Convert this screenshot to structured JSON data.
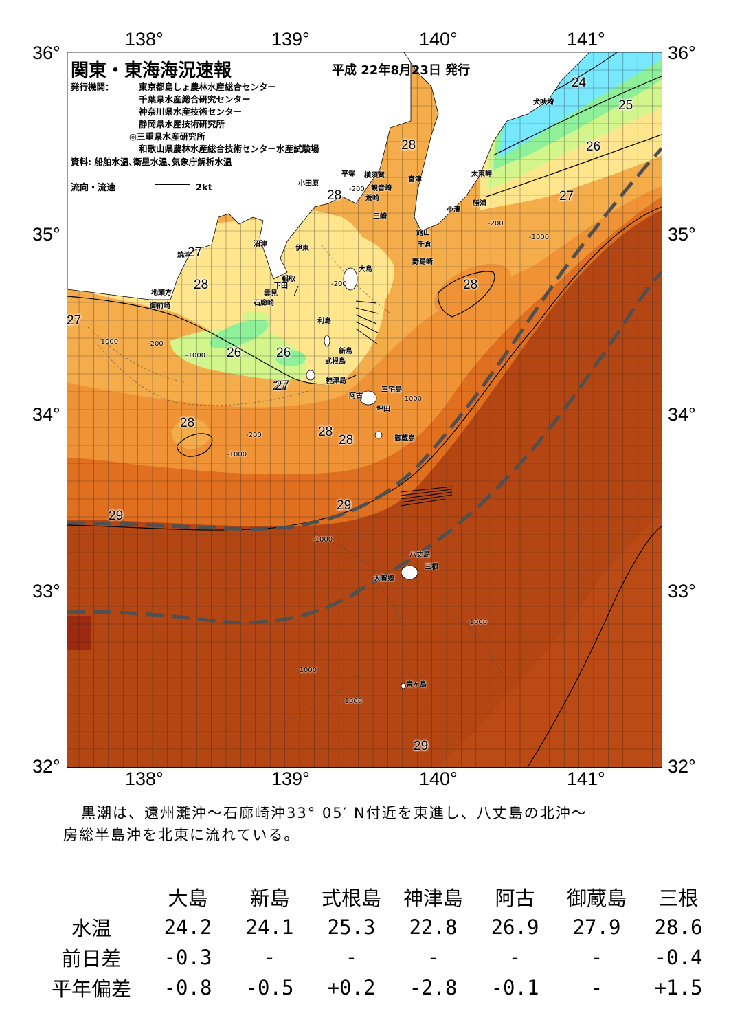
{
  "header": {
    "title": "関東・東海海況速報",
    "issue_date": "平成 22年8月23日 発行"
  },
  "publishers": {
    "label": "発行機関：",
    "orgs": [
      "東京都島しょ農林水産総合センター",
      "千葉県水産総合研究センター",
      "神奈川県水産技術センター",
      "静岡県水産技術研究所",
      "◎三重県水産研究所",
      "和歌山県農林水産総合技術センター水産試験場"
    ],
    "sources": "資料: 船舶水温､衛星水温､気象庁解析水温"
  },
  "legend": {
    "current_label": "流向・流速",
    "scale_label": "2kt"
  },
  "axes": {
    "lon_top": [
      "138°",
      "139°",
      "140°",
      "141°"
    ],
    "lon_bottom": [
      "138°",
      "139°",
      "140°",
      "141°"
    ],
    "lat_left": [
      "36°",
      "35°",
      "34°",
      "33°",
      "32°"
    ],
    "lat_right": [
      "36°",
      "35°",
      "34°",
      "33°",
      "32°"
    ]
  },
  "places": {
    "inubozaki": "犬吠埼",
    "taitomisaki": "太東岬",
    "katsuura": "勝浦",
    "kominato": "小湊",
    "tomitsu": "富津",
    "yokosuka": "横須賀",
    "kannonzaki": "観音崎",
    "hiratsuka": "平塚",
    "odawara": "小田原",
    "arasaki": "荒崎",
    "misaki": "三崎",
    "tateyama": "館山",
    "chikura": "千倉",
    "nojimazaki": "野島崎",
    "numazu": "沼津",
    "ito": "伊東",
    "yaizu": "焼津",
    "oshima": "大島",
    "inatori": "稲取",
    "shimoda": "下田",
    "kumomi": "雲見",
    "irozaki": "石廊崎",
    "jitokata": "地頭方",
    "omaezaki": "御前崎",
    "toshima": "利島",
    "niijima": "新島",
    "shikinejima": "式根島",
    "kozushima": "神津島",
    "miyakejima": "三宅島",
    "ako": "阿古",
    "tsubota": "坪田",
    "mikurajima": "御蔵島",
    "hachijojima": "八丈島",
    "mitsune": "三根",
    "okago": "大賀郷",
    "aogashima": "青ヶ島"
  },
  "isotherms": [
    "24",
    "25",
    "26",
    "27",
    "27",
    "27",
    "27",
    "28",
    "28",
    "28",
    "28",
    "28",
    "28",
    "28",
    "26",
    "26",
    "27",
    "28",
    "29",
    "29",
    "29"
  ],
  "depth_contours": [
    "-200",
    "-1000"
  ],
  "summary": {
    "line1": "黒潮は、遠州灘沖～石廊崎沖33° 05′ N付近を東進し、八丈島の北沖～",
    "line2": "房総半島沖を北東に流れている。"
  },
  "observations": {
    "stations": [
      "大島",
      "新島",
      "式根島",
      "神津島",
      "阿古",
      "御蔵島",
      "三根"
    ],
    "rows": [
      {
        "label": "水温",
        "values": [
          "24.2",
          "24.1",
          "25.3",
          "22.8",
          "26.9",
          "27.9",
          "28.6"
        ]
      },
      {
        "label": "前日差",
        "values": [
          "-0.3",
          "-",
          "-",
          "-",
          "-",
          "-",
          "-0.4"
        ]
      },
      {
        "label": "平年偏差",
        "values": [
          "-0.8",
          "-0.5",
          "+0.2",
          "-2.8",
          "-0.1",
          "-",
          "+1.5"
        ]
      }
    ]
  },
  "colors": {
    "temp_22": "#00c8e6",
    "temp_24": "#78e8ff",
    "temp_25": "#8ff09a",
    "temp_26": "#d2f58c",
    "temp_27": "#ffe68c",
    "temp_27_5": "#fac35a",
    "temp_28": "#f0a03c",
    "temp_28_5": "#e67823",
    "temp_29": "#c85014",
    "temp_30": "#b44614",
    "land": "#ffffff",
    "kuroshio_axis": "#505050"
  }
}
